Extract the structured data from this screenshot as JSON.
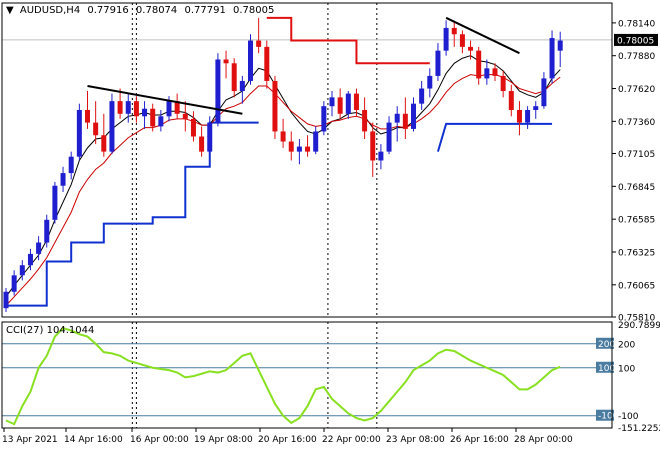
{
  "header": {
    "arrow": "▼",
    "symbol": "AUDUSD,H4",
    "open": "0.77916",
    "high": "0.78074",
    "low": "0.77791",
    "close": "0.78005"
  },
  "colors": {
    "background": "#ffffff",
    "frame": "#000000",
    "grid": "#c0c0c0",
    "bull": "#1f1fd0",
    "bear": "#e01010",
    "ma_fast": "#000000",
    "ma_slow": "#cc0000",
    "stop_up": "#1030d0",
    "stop_down": "#e01010",
    "cci_line": "#88e020",
    "cci_level": "#4a7ba0",
    "price_tag_bg": "#000000",
    "price_tag_fg": "#ffffff"
  },
  "chart_data": [
    {
      "type": "candlestick",
      "symbol": "AUDUSD",
      "timeframe": "H4",
      "ylim": [
        0.7581,
        0.7825
      ],
      "y_ticks": [
        "0.78140",
        "0.77880",
        "0.77620",
        "0.77360",
        "0.77105",
        "0.76845",
        "0.76585",
        "0.76325",
        "0.76065",
        "0.75810"
      ],
      "current_price": "0.78005",
      "x_ticks": [
        "13 Apr 2021",
        "14 Apr 16:00",
        "16 Apr 00:00",
        "19 Apr 08:00",
        "20 Apr 16:00",
        "22 Apr 00:00",
        "23 Apr 08:00",
        "26 Apr 16:00",
        "28 Apr 00:00"
      ],
      "day_separators": [
        16,
        16.5,
        40,
        46,
        96.5
      ],
      "candles": [
        [
          0.7588,
          0.7604,
          0.7585,
          0.7601
        ],
        [
          0.7601,
          0.7618,
          0.7598,
          0.7614
        ],
        [
          0.7614,
          0.7626,
          0.761,
          0.7622
        ],
        [
          0.7622,
          0.7635,
          0.7618,
          0.7631
        ],
        [
          0.7631,
          0.7645,
          0.7626,
          0.764
        ],
        [
          0.764,
          0.7662,
          0.7636,
          0.7658
        ],
        [
          0.7658,
          0.7688,
          0.7655,
          0.7685
        ],
        [
          0.7685,
          0.77,
          0.768,
          0.7695
        ],
        [
          0.7695,
          0.7712,
          0.769,
          0.7708
        ],
        [
          0.7708,
          0.775,
          0.7705,
          0.7745
        ],
        [
          0.7745,
          0.776,
          0.773,
          0.7735
        ],
        [
          0.7735,
          0.7752,
          0.7718,
          0.7725
        ],
        [
          0.7725,
          0.7742,
          0.7708,
          0.7712
        ],
        [
          0.7712,
          0.7758,
          0.771,
          0.7752
        ],
        [
          0.7752,
          0.7762,
          0.7738,
          0.7742
        ],
        [
          0.7742,
          0.7758,
          0.7735,
          0.7752
        ],
        [
          0.7752,
          0.7756,
          0.7735,
          0.774
        ],
        [
          0.774,
          0.7752,
          0.773,
          0.7746
        ],
        [
          0.7746,
          0.775,
          0.7728,
          0.7732
        ],
        [
          0.7732,
          0.7745,
          0.7728,
          0.774
        ],
        [
          0.774,
          0.7756,
          0.7736,
          0.7752
        ],
        [
          0.7752,
          0.7758,
          0.7738,
          0.7742
        ],
        [
          0.7742,
          0.7752,
          0.7728,
          0.7738
        ],
        [
          0.7738,
          0.7744,
          0.772,
          0.7724
        ],
        [
          0.7724,
          0.7732,
          0.7708,
          0.7712
        ],
        [
          0.7712,
          0.774,
          0.7708,
          0.7735
        ],
        [
          0.7735,
          0.779,
          0.7732,
          0.7785
        ],
        [
          0.7785,
          0.7792,
          0.777,
          0.7782
        ],
        [
          0.7782,
          0.7786,
          0.7755,
          0.776
        ],
        [
          0.776,
          0.7772,
          0.775,
          0.7768
        ],
        [
          0.7768,
          0.7805,
          0.7765,
          0.78
        ],
        [
          0.78,
          0.7818,
          0.779,
          0.7795
        ],
        [
          0.7795,
          0.78,
          0.7762,
          0.7768
        ],
        [
          0.7768,
          0.7772,
          0.7722,
          0.7728
        ],
        [
          0.7728,
          0.7738,
          0.7715,
          0.772
        ],
        [
          0.772,
          0.7728,
          0.7705,
          0.7712
        ],
        [
          0.7712,
          0.7722,
          0.7702,
          0.7716
        ],
        [
          0.7716,
          0.7725,
          0.7708,
          0.7712
        ],
        [
          0.7712,
          0.7732,
          0.771,
          0.7728
        ],
        [
          0.7728,
          0.7752,
          0.7725,
          0.7748
        ],
        [
          0.7748,
          0.776,
          0.774,
          0.7755
        ],
        [
          0.7755,
          0.7762,
          0.7738,
          0.7742
        ],
        [
          0.7742,
          0.776,
          0.7738,
          0.7758
        ],
        [
          0.7758,
          0.7762,
          0.774,
          0.7745
        ],
        [
          0.7745,
          0.7755,
          0.7722,
          0.7728
        ],
        [
          0.7728,
          0.7735,
          0.7692,
          0.7705
        ],
        [
          0.7705,
          0.7718,
          0.7698,
          0.7712
        ],
        [
          0.7712,
          0.774,
          0.771,
          0.7735
        ],
        [
          0.7735,
          0.7748,
          0.772,
          0.7742
        ],
        [
          0.7742,
          0.7755,
          0.7722,
          0.773
        ],
        [
          0.773,
          0.7755,
          0.7728,
          0.775
        ],
        [
          0.775,
          0.7768,
          0.7745,
          0.7762
        ],
        [
          0.7762,
          0.7778,
          0.7755,
          0.7772
        ],
        [
          0.7772,
          0.7798,
          0.7768,
          0.7792
        ],
        [
          0.7792,
          0.7816,
          0.7788,
          0.781
        ],
        [
          0.781,
          0.7815,
          0.7795,
          0.7805
        ],
        [
          0.7805,
          0.7808,
          0.779,
          0.7795
        ],
        [
          0.7795,
          0.78,
          0.7785,
          0.7792
        ],
        [
          0.7792,
          0.7795,
          0.7765,
          0.777
        ],
        [
          0.777,
          0.7785,
          0.7765,
          0.7778
        ],
        [
          0.7778,
          0.7782,
          0.7768,
          0.7772
        ],
        [
          0.7772,
          0.7776,
          0.7755,
          0.776
        ],
        [
          0.776,
          0.7765,
          0.774,
          0.7745
        ],
        [
          0.7745,
          0.7752,
          0.7725,
          0.7735
        ],
        [
          0.7735,
          0.7748,
          0.773,
          0.7745
        ],
        [
          0.7745,
          0.7752,
          0.7738,
          0.7748
        ],
        [
          0.7748,
          0.7775,
          0.7746,
          0.777
        ],
        [
          0.777,
          0.7808,
          0.7766,
          0.7802
        ],
        [
          0.7792,
          0.7807,
          0.7779,
          0.78
        ]
      ],
      "moving_averages": [
        {
          "role": "fast",
          "values": [
            0.7597,
            0.7606,
            0.7614,
            0.7622,
            0.763,
            0.7642,
            0.7658,
            0.7672,
            0.7686,
            0.7705,
            0.7715,
            0.7722,
            0.7723,
            0.773,
            0.7735,
            0.774,
            0.7741,
            0.7743,
            0.7741,
            0.7741,
            0.7744,
            0.7744,
            0.7743,
            0.7739,
            0.7733,
            0.7733,
            0.7744,
            0.7753,
            0.7756,
            0.776,
            0.777,
            0.7778,
            0.7776,
            0.7765,
            0.7754,
            0.7743,
            0.7735,
            0.7728,
            0.7726,
            0.773,
            0.7736,
            0.7738,
            0.7742,
            0.7743,
            0.774,
            0.7731,
            0.7726,
            0.7728,
            0.7731,
            0.7731,
            0.7736,
            0.7743,
            0.775,
            0.7761,
            0.7774,
            0.7782,
            0.7786,
            0.7788,
            0.7784,
            0.7783,
            0.7781,
            0.7776,
            0.7768,
            0.776,
            0.7757,
            0.7755,
            0.7759,
            0.777,
            0.7777
          ]
        },
        {
          "role": "slow",
          "values": [
            0.759,
            0.7597,
            0.7604,
            0.7611,
            0.7619,
            0.7628,
            0.764,
            0.7652,
            0.7664,
            0.768,
            0.769,
            0.7698,
            0.7703,
            0.7711,
            0.7717,
            0.7723,
            0.7727,
            0.7731,
            0.7731,
            0.7733,
            0.7737,
            0.7738,
            0.7738,
            0.7736,
            0.7733,
            0.7733,
            0.774,
            0.7746,
            0.7748,
            0.7751,
            0.7758,
            0.7764,
            0.7764,
            0.7758,
            0.7751,
            0.7744,
            0.7739,
            0.7734,
            0.7732,
            0.7733,
            0.7736,
            0.7737,
            0.7739,
            0.774,
            0.7738,
            0.7733,
            0.773,
            0.773,
            0.7732,
            0.7731,
            0.7734,
            0.7738,
            0.7743,
            0.775,
            0.7759,
            0.7766,
            0.777,
            0.7773,
            0.7772,
            0.7773,
            0.7773,
            0.7771,
            0.7767,
            0.7762,
            0.776,
            0.7758,
            0.776,
            0.7766,
            0.7771
          ]
        }
      ],
      "trendlines": [
        {
          "from": [
            10,
            0.7764
          ],
          "to": [
            29,
            0.7742
          ]
        },
        {
          "from": [
            54,
            0.7818
          ],
          "to": [
            63,
            0.779
          ]
        }
      ],
      "stop_levels": [
        {
          "role": "support",
          "points": [
            [
              0,
              0.759
            ],
            [
              5,
              0.759
            ],
            [
              5,
              0.7625
            ],
            [
              8,
              0.7625
            ],
            [
              8,
              0.764
            ],
            [
              12,
              0.764
            ],
            [
              12,
              0.7655
            ],
            [
              18,
              0.7655
            ],
            [
              18,
              0.766
            ],
            [
              22,
              0.766
            ],
            [
              22,
              0.77
            ],
            [
              25,
              0.77
            ],
            [
              25,
              0.7735
            ],
            [
              31,
              0.7735
            ]
          ]
        },
        {
          "role": "resistance",
          "points": [
            [
              32,
              0.7818
            ],
            [
              35,
              0.7818
            ],
            [
              35,
              0.78
            ],
            [
              43,
              0.78
            ],
            [
              43,
              0.7782
            ],
            [
              52,
              0.7782
            ]
          ]
        },
        {
          "role": "support",
          "points": [
            [
              53,
              0.7712
            ],
            [
              54,
              0.7734
            ],
            [
              67,
              0.7734
            ]
          ]
        }
      ]
    },
    {
      "type": "line",
      "indicator_label": "CCI(27) 104.1044",
      "ylim": [
        -151.2252,
        290.7899
      ],
      "y_ticks": [
        "290.7899",
        "200",
        "100",
        "-100",
        "-151.2252"
      ],
      "levels": [
        200,
        100,
        -100
      ],
      "level_labels": [
        "200",
        "100",
        "-100"
      ],
      "values": [
        -120,
        -135,
        -60,
        0,
        100,
        150,
        230,
        265,
        255,
        240,
        230,
        200,
        165,
        160,
        150,
        130,
        120,
        110,
        100,
        95,
        90,
        80,
        60,
        65,
        75,
        85,
        80,
        90,
        120,
        150,
        160,
        90,
        20,
        -50,
        -100,
        -130,
        -110,
        -60,
        10,
        20,
        -30,
        -60,
        -90,
        -110,
        -120,
        -110,
        -80,
        -40,
        0,
        40,
        90,
        110,
        130,
        160,
        175,
        170,
        150,
        130,
        115,
        100,
        85,
        70,
        40,
        10,
        10,
        30,
        60,
        90,
        104.1044
      ]
    }
  ]
}
